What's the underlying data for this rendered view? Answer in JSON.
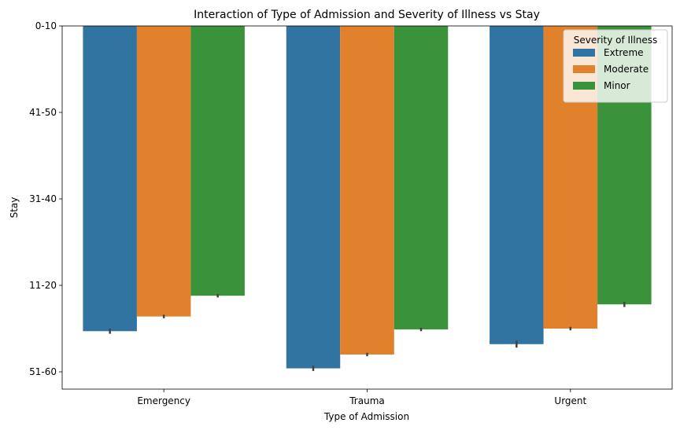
{
  "chart_data": {
    "type": "bar",
    "title": "Interaction of Type of Admission and Severity of Illness vs Stay",
    "xlabel": "Type of Admission",
    "ylabel": "Stay",
    "categories": [
      "Emergency",
      "Trauma",
      "Urgent"
    ],
    "y_ticks": [
      "0-10",
      "41-50",
      "31-40",
      "11-20",
      "51-60"
    ],
    "ylim": [
      0,
      4.2
    ],
    "y_inverted": true,
    "legend": {
      "title": "Severity of Illness",
      "placement": "top-right"
    },
    "series": [
      {
        "name": "Extreme",
        "color": "#3274a1",
        "values": [
          3.53,
          3.96,
          3.68
        ],
        "err": [
          0.03,
          0.03,
          0.04
        ]
      },
      {
        "name": "Moderate",
        "color": "#e1812c",
        "values": [
          3.36,
          3.8,
          3.5
        ],
        "err": [
          0.02,
          0.02,
          0.02
        ]
      },
      {
        "name": "Minor",
        "color": "#3a923a",
        "values": [
          3.12,
          3.51,
          3.22
        ],
        "err": [
          0.02,
          0.02,
          0.03
        ]
      }
    ]
  }
}
